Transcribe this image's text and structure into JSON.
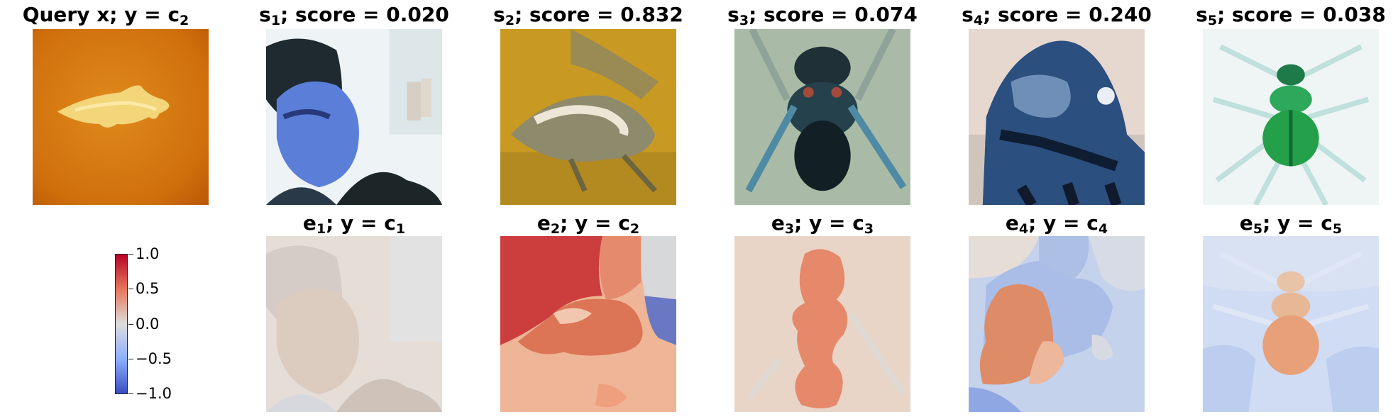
{
  "query": {
    "prefix": "Query x; y = c",
    "sub": "2"
  },
  "similar": [
    {
      "s": "s",
      "n": "1",
      "score": "; score = 0.020"
    },
    {
      "s": "s",
      "n": "2",
      "score": "; score = 0.832"
    },
    {
      "s": "s",
      "n": "3",
      "score": "; score = 0.074"
    },
    {
      "s": "s",
      "n": "4",
      "score": "; score = 0.240"
    },
    {
      "s": "s",
      "n": "5",
      "score": "; score = 0.038"
    }
  ],
  "explanations": [
    {
      "e": "e",
      "n": "1",
      "mid": "; y = c",
      "c": "1"
    },
    {
      "e": "e",
      "n": "2",
      "mid": "; y = c",
      "c": "2"
    },
    {
      "e": "e",
      "n": "3",
      "mid": "; y = c",
      "c": "3"
    },
    {
      "e": "e",
      "n": "4",
      "mid": "; y = c",
      "c": "4"
    },
    {
      "e": "e",
      "n": "5",
      "mid": "; y = c",
      "c": "5"
    }
  ],
  "colorbar": {
    "ticks": [
      "1.0",
      "0.5",
      "0.0",
      "−0.5",
      "−1.0"
    ],
    "colors": {
      "high": "#b40426",
      "mid": "#dddcdc",
      "low": "#3b4cc0"
    }
  }
}
